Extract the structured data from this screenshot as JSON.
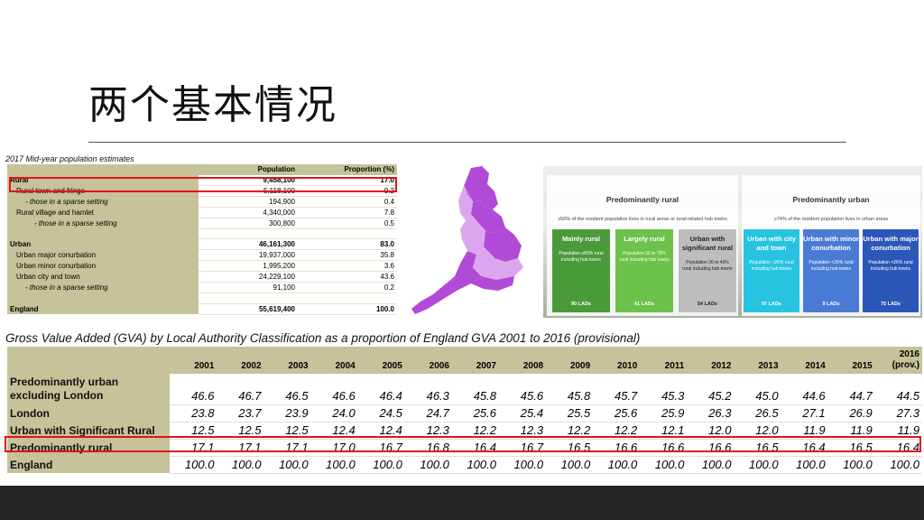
{
  "slide": {
    "title": "两个基本情况",
    "pop_caption": "2017 Mid-year population estimates",
    "gva_caption": "Gross Value Added (GVA) by Local Authority Classification as a proportion of England GVA 2001 to 2016 (provisional)"
  },
  "pop_table": {
    "headers": [
      "",
      "Population",
      "Proportion (%)"
    ],
    "rows": [
      {
        "name": "Rural",
        "population": "9,458,100",
        "proportion": "17.0"
      },
      {
        "name": "Rural town and fringe",
        "population": "5,118,100",
        "proportion": "9.2"
      },
      {
        "name": "- those in a sparse setting",
        "population": "194,900",
        "proportion": "0.4"
      },
      {
        "name": "Rural village and hamlet",
        "population": "4,340,000",
        "proportion": "7.8"
      },
      {
        "name": "- those in a sparse setting",
        "population": "300,800",
        "proportion": "0.5"
      },
      {
        "name": "",
        "population": "",
        "proportion": ""
      },
      {
        "name": "Urban",
        "population": "46,161,300",
        "proportion": "83.0"
      },
      {
        "name": "Urban major conurbation",
        "population": "19,937,000",
        "proportion": "35.8"
      },
      {
        "name": "Urban minor conurbation",
        "population": "1,995,200",
        "proportion": "3.6"
      },
      {
        "name": "Urban city and town",
        "population": "24,229,100",
        "proportion": "43.6"
      },
      {
        "name": "- those in a sparse setting",
        "population": "91,100",
        "proportion": "0.2"
      },
      {
        "name": "",
        "population": "",
        "proportion": ""
      },
      {
        "name": "England",
        "population": "55,619,400",
        "proportion": "100.0"
      }
    ]
  },
  "classification": {
    "rural_panel": {
      "title": "Predominantly rural",
      "subtitle": "≥50% of the resident population lives in rural areas or rural-related hub towns"
    },
    "urban_panel": {
      "title": "Predominantly urban",
      "subtitle": "≥74% of the resident population lives in urban areas"
    },
    "boxes": [
      {
        "heading": "Mainly rural",
        "desc": "Population ≥80% rural including hub towns",
        "lads": "90 LADs",
        "color": "#4b9a3a"
      },
      {
        "heading": "Largely rural",
        "desc": "Population 50 to 79% rural including hub towns",
        "lads": "41 LADs",
        "color": "#6cc24a"
      },
      {
        "heading": "Urban with significant rural",
        "desc": "Population 26 to 49% rural including hub towns",
        "lads": "54 LADs",
        "color": "#bdbdbd"
      },
      {
        "heading": "Urban with city and town",
        "desc": "Population <26% rural including hub towns",
        "lads": "97 LADs",
        "color": "#27c3e0"
      },
      {
        "heading": "Urban with minor conurbation",
        "desc": "Population <26% rural including hub towns",
        "lads": "9 LADs",
        "color": "#4a7bd4"
      },
      {
        "heading": "Urban with major conurbation",
        "desc": "Population <26% rural including hub towns",
        "lads": "75 LADs",
        "color": "#2b57b8"
      }
    ]
  },
  "gva_table": {
    "years": [
      "2001",
      "2002",
      "2003",
      "2004",
      "2005",
      "2006",
      "2007",
      "2008",
      "2009",
      "2010",
      "2011",
      "2012",
      "2013",
      "2014",
      "2015",
      "2016 (prov.)"
    ],
    "rows": [
      {
        "name": "Predominantly urban excluding London",
        "values": [
          "46.6",
          "46.7",
          "46.5",
          "46.6",
          "46.4",
          "46.3",
          "45.8",
          "45.6",
          "45.8",
          "45.7",
          "45.3",
          "45.2",
          "45.0",
          "44.6",
          "44.7",
          "44.5"
        ]
      },
      {
        "name": "London",
        "values": [
          "23.8",
          "23.7",
          "23.9",
          "24.0",
          "24.5",
          "24.7",
          "25.6",
          "25.4",
          "25.5",
          "25.6",
          "25.9",
          "26.3",
          "26.5",
          "27.1",
          "26.9",
          "27.3"
        ]
      },
      {
        "name": "Urban with Significant Rural",
        "values": [
          "12.5",
          "12.5",
          "12.5",
          "12.4",
          "12.4",
          "12.3",
          "12.2",
          "12.3",
          "12.2",
          "12.2",
          "12.1",
          "12.0",
          "12.0",
          "11.9",
          "11.9",
          "11.9"
        ]
      },
      {
        "name": "Predominantly rural",
        "values": [
          "17.1",
          "17.1",
          "17.1",
          "17.0",
          "16.7",
          "16.8",
          "16.4",
          "16.7",
          "16.5",
          "16.6",
          "16.6",
          "16.6",
          "16.5",
          "16.4",
          "16.5",
          "16.4"
        ]
      },
      {
        "name": "England",
        "values": [
          "100.0",
          "100.0",
          "100.0",
          "100.0",
          "100.0",
          "100.0",
          "100.0",
          "100.0",
          "100.0",
          "100.0",
          "100.0",
          "100.0",
          "100.0",
          "100.0",
          "100.0",
          "100.0"
        ]
      }
    ]
  },
  "colors": {
    "accent_red": "#e3121b",
    "header_khaki": "#c6c29a",
    "map_purple": "#b24ad8",
    "map_light": "#dba6ee",
    "footer": "#262626"
  }
}
